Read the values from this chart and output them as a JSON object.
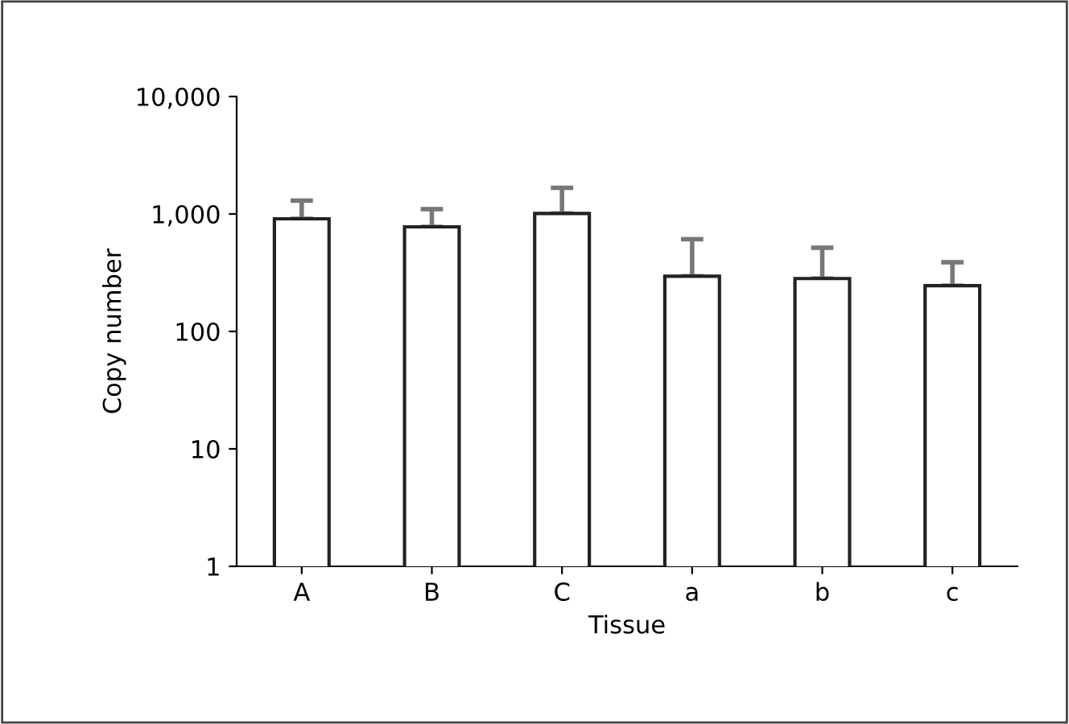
{
  "chart_data": {
    "type": "bar",
    "xlabel": "Tissue",
    "ylabel": "Copy number",
    "categories": [
      "A",
      "B",
      "C",
      "a",
      "b",
      "c"
    ],
    "values": [
      910,
      777,
      1010,
      295,
      282,
      245
    ],
    "errors": [
      [
        910,
        1300
      ],
      [
        777,
        1100
      ],
      [
        1010,
        1670
      ],
      [
        295,
        610
      ],
      [
        282,
        516
      ],
      [
        245,
        388
      ]
    ],
    "color": "#ffffff",
    "log": true,
    "ylim": [
      1,
      10000
    ],
    "yticks": [
      {
        "value": 1,
        "label": "1"
      },
      {
        "value": 10,
        "label": "10"
      },
      {
        "value": 100,
        "label": "100"
      },
      {
        "value": 1000,
        "label": "1,000"
      },
      {
        "value": 10000,
        "label": "10,000"
      }
    ],
    "grid": false,
    "legend": false
  }
}
